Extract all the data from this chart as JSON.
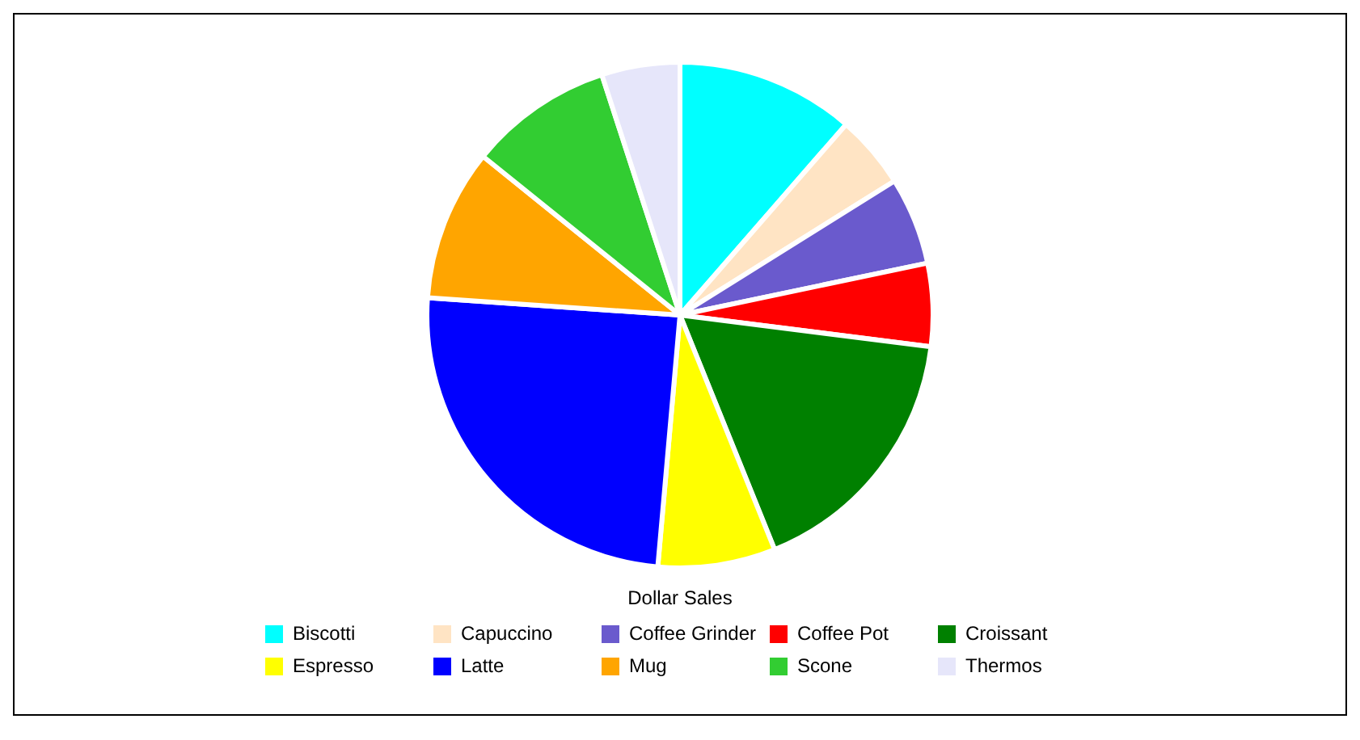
{
  "chart_data": {
    "type": "pie",
    "title": "Dollar Sales",
    "legend": "bottom",
    "categories": [
      "Biscotti",
      "Capuccino",
      "Coffee Grinder",
      "Coffee Pot",
      "Croissant",
      "Espresso",
      "Latte",
      "Mug",
      "Scone",
      "Thermos"
    ],
    "values": [
      11.4,
      4.7,
      5.6,
      5.3,
      16.9,
      7.5,
      24.7,
      9.7,
      9.2,
      5.0
    ],
    "colors": [
      "#00ffff",
      "#ffe4c4",
      "#6a5acd",
      "#ff0000",
      "#008000",
      "#ffff00",
      "#0000ff",
      "#ffa500",
      "#32cd32",
      "#e6e6fa"
    ]
  }
}
